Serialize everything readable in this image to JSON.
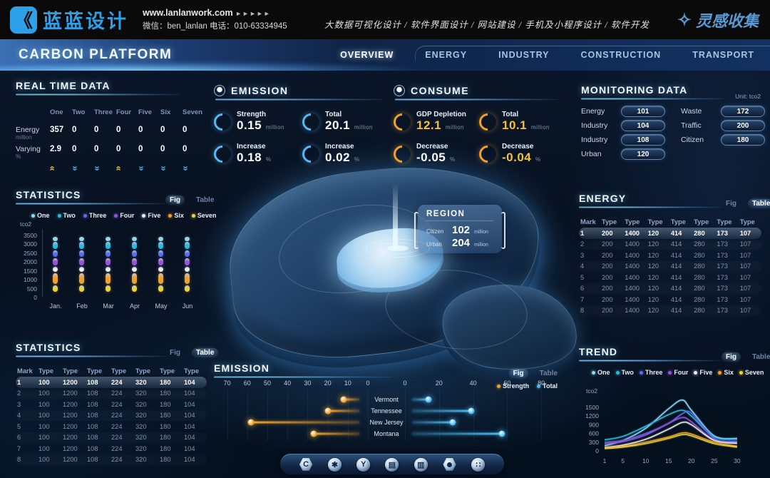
{
  "header": {
    "brand": "蓝蓝设计",
    "website": "www.lanlanwork.com",
    "arrows": "►►►►►",
    "contact_line2": "微信：ben_lanlan    电话：010-63334945",
    "services": "大数据可视化设计 / 软件界面设计 / 网站建设 / 手机及小程序设计 / 软件开发",
    "collect": "灵感收集",
    "collect_star": "✧",
    "logo_glyph": "《"
  },
  "navbar": {
    "title": "CARBON PLATFORM",
    "items": [
      {
        "label": "OVERVIEW",
        "active": true
      },
      {
        "label": "ENERGY",
        "active": false
      },
      {
        "label": "INDUSTRY",
        "active": false
      },
      {
        "label": "CONSTRUCTION",
        "active": false
      },
      {
        "label": "TRANSPORT",
        "active": false
      }
    ]
  },
  "realtime": {
    "title": "REAL TIME DATA",
    "columns": [
      "One",
      "Two",
      "Three",
      "Four",
      "Five",
      "Six",
      "Seven"
    ],
    "rows": [
      {
        "label": "Energy",
        "unit": "million",
        "values": [
          "357",
          "0",
          "0",
          "0",
          "0",
          "0",
          "0"
        ]
      },
      {
        "label": "Varying",
        "unit": "%",
        "values": [
          "2.9",
          "0",
          "0",
          "0",
          "0",
          "0",
          "0"
        ]
      }
    ],
    "trends": [
      "up",
      "down",
      "down",
      "up",
      "down",
      "down",
      "down"
    ]
  },
  "statistics_fig": {
    "title": "STATISTICS",
    "fig_label": "Fig",
    "table_label": "Table",
    "active_toggle": "fig"
  },
  "statistics_table": {
    "title": "STATISTICS",
    "fig_label": "Fig",
    "table_label": "Table",
    "active_toggle": "table",
    "headers": [
      "Mark",
      "Type",
      "Type",
      "Type",
      "Type",
      "Type",
      "Type",
      "Type"
    ],
    "rows": [
      [
        "1",
        "100",
        "1200",
        "108",
        "224",
        "320",
        "180",
        "104"
      ],
      [
        "2",
        "100",
        "1200",
        "108",
        "224",
        "320",
        "180",
        "104"
      ],
      [
        "3",
        "100",
        "1200",
        "108",
        "224",
        "320",
        "180",
        "104"
      ],
      [
        "4",
        "100",
        "1200",
        "108",
        "224",
        "320",
        "180",
        "104"
      ],
      [
        "5",
        "100",
        "1200",
        "108",
        "224",
        "320",
        "180",
        "104"
      ],
      [
        "6",
        "100",
        "1200",
        "108",
        "224",
        "320",
        "180",
        "104"
      ],
      [
        "7",
        "100",
        "1200",
        "108",
        "224",
        "320",
        "180",
        "104"
      ],
      [
        "8",
        "100",
        "1200",
        "108",
        "224",
        "320",
        "180",
        "104"
      ]
    ]
  },
  "emission_stats": {
    "title": "EMISSION",
    "stats": [
      {
        "label": "Strength",
        "value": "0.15",
        "unit": "million",
        "accent": false
      },
      {
        "label": "Total",
        "value": "20.1",
        "unit": "million",
        "accent": false
      },
      {
        "label": "Increase",
        "value": "0.18",
        "unit": "%",
        "accent": false
      },
      {
        "label": "Increase",
        "value": "0.02",
        "unit": "%",
        "accent": false
      }
    ]
  },
  "consume_stats": {
    "title": "CONSUME",
    "stats": [
      {
        "label": "GDP Depletion",
        "value": "12.1",
        "unit": "million",
        "accent": true
      },
      {
        "label": "Total",
        "value": "10.1",
        "unit": "million",
        "accent": true
      },
      {
        "label": "Decrease",
        "value": "-0.05",
        "unit": "%",
        "accent": false
      },
      {
        "label": "Decrease",
        "value": "-0.04",
        "unit": "%",
        "accent": true
      }
    ]
  },
  "region_tooltip": {
    "title": "REGION",
    "rows": [
      {
        "label": "Citizen",
        "value": "102",
        "unit": "million"
      },
      {
        "label": "Urban",
        "value": "204",
        "unit": "million"
      }
    ]
  },
  "monitoring": {
    "title": "MONITORING DATA",
    "unit_note": "Unit: tco2",
    "left": [
      {
        "label": "Energy",
        "value": "101"
      },
      {
        "label": "Industry",
        "value": "104"
      },
      {
        "label": "Industry",
        "value": "108"
      },
      {
        "label": "Urban",
        "value": "120"
      }
    ],
    "right": [
      {
        "label": "Waste",
        "value": "172"
      },
      {
        "label": "Traffic",
        "value": "200"
      },
      {
        "label": "Citizen",
        "value": "180"
      }
    ]
  },
  "energy_table": {
    "title": "ENERGY",
    "fig_label": "Fig",
    "table_label": "Table",
    "active_toggle": "table",
    "headers": [
      "Mark",
      "Type",
      "Type",
      "Type",
      "Type",
      "Type",
      "Type",
      "Type"
    ],
    "rows": [
      [
        "1",
        "200",
        "1400",
        "120",
        "414",
        "280",
        "173",
        "107"
      ],
      [
        "2",
        "200",
        "1400",
        "120",
        "414",
        "280",
        "173",
        "107"
      ],
      [
        "3",
        "200",
        "1400",
        "120",
        "414",
        "280",
        "173",
        "107"
      ],
      [
        "4",
        "200",
        "1400",
        "120",
        "414",
        "280",
        "173",
        "107"
      ],
      [
        "5",
        "200",
        "1400",
        "120",
        "414",
        "280",
        "173",
        "107"
      ],
      [
        "6",
        "200",
        "1400",
        "120",
        "414",
        "280",
        "173",
        "107"
      ],
      [
        "7",
        "200",
        "1400",
        "120",
        "414",
        "280",
        "173",
        "107"
      ],
      [
        "8",
        "200",
        "1400",
        "120",
        "414",
        "280",
        "173",
        "107"
      ]
    ]
  },
  "emission_chart": {
    "title": "EMISSION",
    "fig_label": "Fig",
    "table_label": "Table",
    "active_toggle": "fig"
  },
  "trend_panel": {
    "title": "TREND",
    "fig_label": "Fig",
    "table_label": "Table",
    "active_toggle": "fig"
  },
  "toolbar": {
    "icons": [
      "home-hex",
      "gear",
      "circle-y",
      "charging-pile",
      "monitor",
      "nut",
      "apps"
    ]
  },
  "colors": {
    "accent": "#49b8f0",
    "orange": "#f0a02c",
    "yellow": "#ecd53a",
    "up_arrow": "#e8c040",
    "down_arrow": "#49b8f0"
  },
  "chart_data": [
    {
      "id": "statistics_fig",
      "type": "bar",
      "title": "STATISTICS",
      "ylabel": "tco2",
      "ylim": [
        0,
        3500
      ],
      "yticks": [
        0,
        500,
        1000,
        1500,
        2000,
        2500,
        3000,
        3500
      ],
      "categories": [
        "Jan.",
        "Feb",
        "Mar",
        "Apr",
        "May",
        "Jun"
      ],
      "series": [
        {
          "name": "One",
          "color": "#8fd8f8",
          "from": 3150,
          "to": 3380
        },
        {
          "name": "Two",
          "color": "#2fb9e0",
          "from": 2700,
          "to": 3080
        },
        {
          "name": "Three",
          "color": "#5a6ee8",
          "from": 2240,
          "to": 2620
        },
        {
          "name": "Four",
          "color": "#9a52dc",
          "from": 1760,
          "to": 2160
        },
        {
          "name": "Five",
          "color": "#e9eef4",
          "from": 1400,
          "to": 1680
        },
        {
          "name": "Six",
          "color": "#f0a02c",
          "from": 720,
          "to": 1330
        },
        {
          "name": "Seven",
          "color": "#ecd53a",
          "from": 280,
          "to": 640
        }
      ],
      "note": "identical stacked segments in every month"
    },
    {
      "id": "emission_chart",
      "type": "lollipop-dual",
      "title": "EMISSION",
      "categories": [
        "Vermont",
        "Tennessee",
        "New Jersey",
        "Montana"
      ],
      "left_axis_ticks": [
        70,
        60,
        50,
        40,
        30,
        20,
        10,
        0
      ],
      "right_axis_ticks": [
        0,
        20,
        40,
        60,
        80
      ],
      "series": [
        {
          "name": "Strength",
          "color": "#f0a02c",
          "axis": "left",
          "values": [
            12,
            20,
            58,
            27
          ]
        },
        {
          "name": "Total",
          "color": "#49b8f0",
          "axis": "right",
          "values": [
            14,
            39,
            28,
            57
          ]
        }
      ]
    },
    {
      "id": "trend",
      "type": "line",
      "title": "TREND",
      "ylabel": "tco2",
      "ylim": [
        0,
        1800
      ],
      "yticks": [
        0,
        300,
        600,
        900,
        1200,
        1500
      ],
      "x": [
        1,
        5,
        10,
        15,
        18,
        20,
        25,
        30
      ],
      "xticks": [
        1,
        5,
        10,
        15,
        20,
        25,
        30
      ],
      "series": [
        {
          "name": "One",
          "color": "#8fd8f8",
          "values": [
            180,
            360,
            780,
            1450,
            1750,
            1400,
            520,
            430
          ]
        },
        {
          "name": "Two",
          "color": "#2fb9e0",
          "values": [
            380,
            500,
            850,
            1250,
            1400,
            1200,
            480,
            400
          ]
        },
        {
          "name": "Three",
          "color": "#5a6ee8",
          "values": [
            300,
            360,
            600,
            950,
            1280,
            1300,
            430,
            330
          ]
        },
        {
          "name": "Four",
          "color": "#9a52dc",
          "values": [
            250,
            320,
            550,
            950,
            1150,
            1000,
            380,
            300
          ]
        },
        {
          "name": "Five",
          "color": "#e9eef4",
          "values": [
            120,
            200,
            400,
            750,
            980,
            900,
            360,
            260
          ]
        },
        {
          "name": "Six",
          "color": "#f0a02c",
          "values": [
            100,
            160,
            300,
            480,
            620,
            580,
            300,
            160
          ]
        },
        {
          "name": "Seven",
          "color": "#ecd53a",
          "values": [
            80,
            130,
            250,
            430,
            560,
            520,
            250,
            130
          ]
        }
      ]
    }
  ]
}
